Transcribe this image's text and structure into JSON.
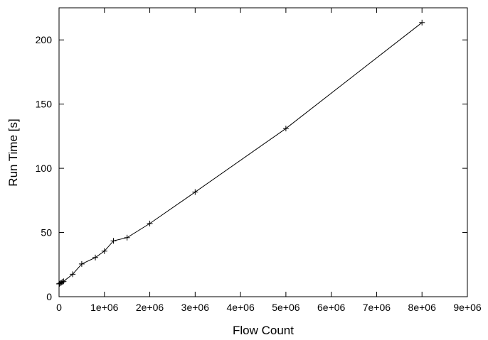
{
  "chart_data": {
    "type": "line",
    "xlabel": "Flow Count",
    "ylabel": "Run Time [s]",
    "xlim": [
      0,
      9000000
    ],
    "ylim": [
      0,
      225
    ],
    "x_ticks": [
      {
        "value": 0,
        "label": "0"
      },
      {
        "value": 1000000,
        "label": "1e+06"
      },
      {
        "value": 2000000,
        "label": "2e+06"
      },
      {
        "value": 3000000,
        "label": "3e+06"
      },
      {
        "value": 4000000,
        "label": "4e+06"
      },
      {
        "value": 5000000,
        "label": "5e+06"
      },
      {
        "value": 6000000,
        "label": "6e+06"
      },
      {
        "value": 7000000,
        "label": "7e+06"
      },
      {
        "value": 8000000,
        "label": "8e+06"
      },
      {
        "value": 9000000,
        "label": "9e+06"
      }
    ],
    "y_ticks": [
      {
        "value": 0,
        "label": "0"
      },
      {
        "value": 50,
        "label": "50"
      },
      {
        "value": 100,
        "label": "100"
      },
      {
        "value": 150,
        "label": "150"
      },
      {
        "value": 200,
        "label": "200"
      }
    ],
    "grid": false,
    "marker": "+",
    "series": [
      {
        "color": "#000000",
        "points": [
          {
            "x": 0,
            "y": 10
          },
          {
            "x": 10000,
            "y": 10
          },
          {
            "x": 25000,
            "y": 10.5
          },
          {
            "x": 50000,
            "y": 11
          },
          {
            "x": 75000,
            "y": 11.5
          },
          {
            "x": 100000,
            "y": 12
          },
          {
            "x": 300000,
            "y": 17.5
          },
          {
            "x": 500000,
            "y": 25.5
          },
          {
            "x": 800000,
            "y": 30.5
          },
          {
            "x": 1000000,
            "y": 35.5
          },
          {
            "x": 1200000,
            "y": 43.5
          },
          {
            "x": 1500000,
            "y": 46
          },
          {
            "x": 2000000,
            "y": 57
          },
          {
            "x": 3000000,
            "y": 81.5
          },
          {
            "x": 5000000,
            "y": 131
          },
          {
            "x": 8000000,
            "y": 213.5
          }
        ]
      }
    ]
  }
}
